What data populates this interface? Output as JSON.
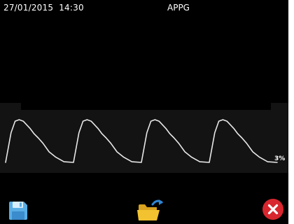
{
  "status_bar": {
    "datetime": "27/01/2015  14:30",
    "title": "APPG"
  },
  "waveform": {
    "scale_label": "3%",
    "trace_color": "#e8e8e8",
    "panel_color": "#131313",
    "pulse_count": 4
  },
  "toolbar": {
    "buttons": [
      {
        "name": "save",
        "icon": "floppy-disk-icon",
        "color": "#5aaee6"
      },
      {
        "name": "open",
        "icon": "open-folder-icon",
        "color": "#f2c230"
      },
      {
        "name": "close",
        "icon": "close-circle-icon",
        "color": "#d8262e"
      }
    ]
  },
  "colors": {
    "background": "#000000",
    "text": "#ffffff"
  }
}
